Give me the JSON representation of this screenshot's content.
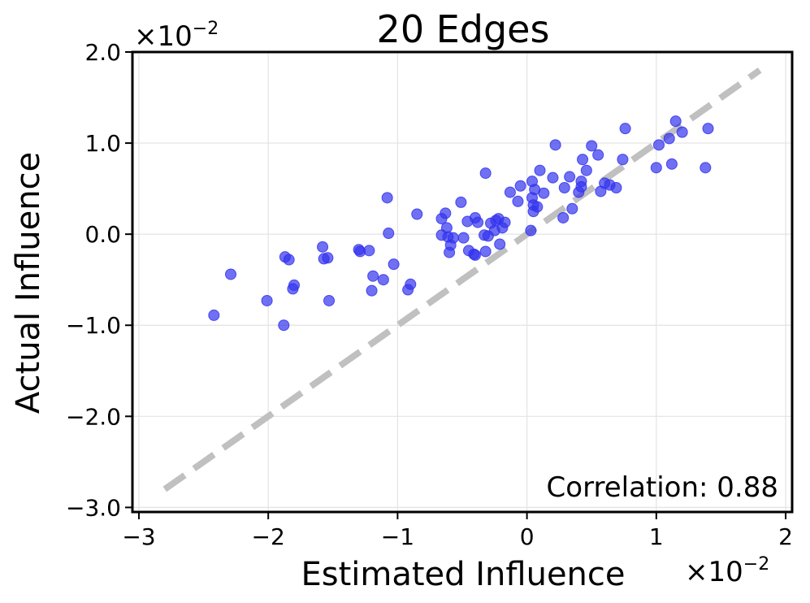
{
  "chart_data": {
    "type": "scatter",
    "title": "20 Edges",
    "xlabel": "Estimated Influence",
    "ylabel": "Actual Influence",
    "x_scale_label": "×10",
    "x_scale_exp": "−2",
    "y_scale_label": "×10",
    "y_scale_exp": "−2",
    "xlim": [
      -3.05,
      2.05
    ],
    "ylim": [
      -3.05,
      2.0
    ],
    "xticks": [
      -3,
      -2,
      -1,
      0,
      1,
      2
    ],
    "xtick_labels": [
      "−3",
      "−2",
      "−1",
      "0",
      "1",
      "2"
    ],
    "yticks": [
      -3,
      -2,
      -1,
      0,
      1,
      2
    ],
    "ytick_labels": [
      "−3.0",
      "−2.0",
      "−1.0",
      "0.0",
      "1.0",
      "2.0"
    ],
    "grid": true,
    "annotation": "Correlation: 0.88",
    "reference_line": {
      "x": [
        -2.8,
        1.8
      ],
      "y": [
        -2.8,
        1.8
      ],
      "color": "#c0c0c0",
      "style": "dashed"
    },
    "point_color": "#3333ee",
    "points": [
      {
        "x": -2.42,
        "y": -0.89
      },
      {
        "x": -2.29,
        "y": -0.44
      },
      {
        "x": -2.01,
        "y": -0.73
      },
      {
        "x": -1.88,
        "y": -1.0
      },
      {
        "x": -1.87,
        "y": -0.25
      },
      {
        "x": -1.84,
        "y": -0.28
      },
      {
        "x": -1.81,
        "y": -0.6
      },
      {
        "x": -1.8,
        "y": -0.56
      },
      {
        "x": -1.58,
        "y": -0.14
      },
      {
        "x": -1.57,
        "y": -0.27
      },
      {
        "x": -1.54,
        "y": -0.26
      },
      {
        "x": -1.53,
        "y": -0.73
      },
      {
        "x": -1.3,
        "y": -0.17
      },
      {
        "x": -1.29,
        "y": -0.19
      },
      {
        "x": -1.22,
        "y": -0.18
      },
      {
        "x": -1.2,
        "y": -0.62
      },
      {
        "x": -1.19,
        "y": -0.46
      },
      {
        "x": -1.11,
        "y": -0.5
      },
      {
        "x": -1.08,
        "y": 0.4
      },
      {
        "x": -1.07,
        "y": 0.01
      },
      {
        "x": -1.03,
        "y": -0.33
      },
      {
        "x": -0.92,
        "y": -0.61
      },
      {
        "x": -0.9,
        "y": -0.55
      },
      {
        "x": -0.85,
        "y": 0.22
      },
      {
        "x": -0.66,
        "y": 0.17
      },
      {
        "x": -0.66,
        "y": -0.01
      },
      {
        "x": -0.63,
        "y": 0.23
      },
      {
        "x": -0.62,
        "y": 0.07
      },
      {
        "x": -0.61,
        "y": -0.03
      },
      {
        "x": -0.6,
        "y": -0.2
      },
      {
        "x": -0.59,
        "y": -0.12
      },
      {
        "x": -0.57,
        "y": -0.04
      },
      {
        "x": -0.51,
        "y": 0.35
      },
      {
        "x": -0.49,
        "y": -0.04
      },
      {
        "x": -0.46,
        "y": 0.14
      },
      {
        "x": -0.45,
        "y": -0.18
      },
      {
        "x": -0.41,
        "y": -0.22
      },
      {
        "x": -0.4,
        "y": 0.18
      },
      {
        "x": -0.4,
        "y": -0.23
      },
      {
        "x": -0.38,
        "y": 0.13
      },
      {
        "x": -0.33,
        "y": -0.01
      },
      {
        "x": -0.32,
        "y": -0.19
      },
      {
        "x": -0.32,
        "y": 0.67
      },
      {
        "x": -0.3,
        "y": -0.02
      },
      {
        "x": -0.28,
        "y": 0.12
      },
      {
        "x": -0.25,
        "y": 0.04
      },
      {
        "x": -0.24,
        "y": 0.15
      },
      {
        "x": -0.22,
        "y": 0.17
      },
      {
        "x": -0.21,
        "y": -0.11
      },
      {
        "x": -0.19,
        "y": 0.07
      },
      {
        "x": -0.17,
        "y": 0.13
      },
      {
        "x": -0.13,
        "y": 0.46
      },
      {
        "x": -0.07,
        "y": 0.36
      },
      {
        "x": -0.05,
        "y": 0.53
      },
      {
        "x": 0.03,
        "y": 0.04
      },
      {
        "x": 0.04,
        "y": 0.58
      },
      {
        "x": 0.04,
        "y": 0.4
      },
      {
        "x": 0.05,
        "y": 0.32
      },
      {
        "x": 0.05,
        "y": 0.25
      },
      {
        "x": 0.06,
        "y": 0.49
      },
      {
        "x": 0.08,
        "y": 0.3
      },
      {
        "x": 0.1,
        "y": 0.7
      },
      {
        "x": 0.13,
        "y": 0.45
      },
      {
        "x": 0.2,
        "y": 0.62
      },
      {
        "x": 0.22,
        "y": 0.98
      },
      {
        "x": 0.28,
        "y": 0.18
      },
      {
        "x": 0.29,
        "y": 0.51
      },
      {
        "x": 0.33,
        "y": 0.63
      },
      {
        "x": 0.35,
        "y": 0.28
      },
      {
        "x": 0.4,
        "y": 0.46
      },
      {
        "x": 0.42,
        "y": 0.58
      },
      {
        "x": 0.42,
        "y": 0.52
      },
      {
        "x": 0.43,
        "y": 0.82
      },
      {
        "x": 0.46,
        "y": 0.7
      },
      {
        "x": 0.5,
        "y": 0.97
      },
      {
        "x": 0.55,
        "y": 0.87
      },
      {
        "x": 0.57,
        "y": 0.47
      },
      {
        "x": 0.6,
        "y": 0.56
      },
      {
        "x": 0.64,
        "y": 0.54
      },
      {
        "x": 0.69,
        "y": 0.51
      },
      {
        "x": 0.74,
        "y": 0.82
      },
      {
        "x": 0.76,
        "y": 1.16
      },
      {
        "x": 1.0,
        "y": 0.73
      },
      {
        "x": 1.02,
        "y": 0.98
      },
      {
        "x": 1.1,
        "y": 1.05
      },
      {
        "x": 1.12,
        "y": 0.77
      },
      {
        "x": 1.15,
        "y": 1.24
      },
      {
        "x": 1.2,
        "y": 1.12
      },
      {
        "x": 1.38,
        "y": 0.73
      },
      {
        "x": 1.4,
        "y": 1.16
      }
    ]
  }
}
